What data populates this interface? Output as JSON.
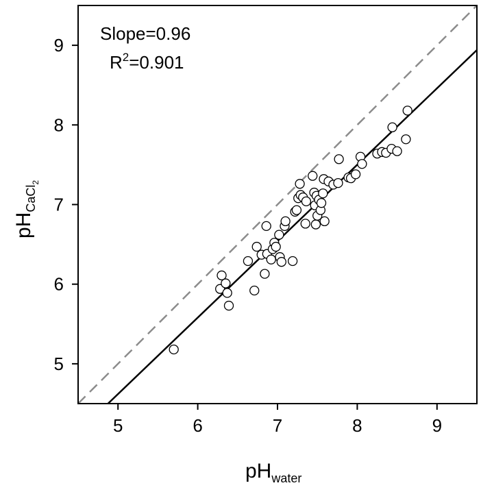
{
  "chart_data": {
    "type": "scatter",
    "xlabel": {
      "main": "pH",
      "sub": "water"
    },
    "ylabel": {
      "main": "pH",
      "sub": "CaCl",
      "sub2": "2"
    },
    "xlim": [
      4.5,
      9.5
    ],
    "ylim": [
      4.5,
      9.5
    ],
    "xticks": [
      5,
      6,
      7,
      8,
      9
    ],
    "yticks": [
      5,
      6,
      7,
      8,
      9
    ],
    "annotation": {
      "slope_text": "Slope=0.96",
      "r2_prefix": "R",
      "r2_sup": "2",
      "r2_value": "=0.901"
    },
    "one_to_one_line": {
      "style": "dashed",
      "color": "#8c8c8c",
      "points": [
        [
          4.5,
          4.5
        ],
        [
          9.5,
          9.5
        ]
      ]
    },
    "fit_line": {
      "style": "solid",
      "color": "#000000",
      "slope": 0.96,
      "intercept": -0.18
    },
    "series": [
      {
        "marker": "open-circle",
        "points": [
          [
            5.7,
            5.18
          ],
          [
            6.28,
            5.94
          ],
          [
            6.3,
            6.11
          ],
          [
            6.35,
            6.01
          ],
          [
            6.37,
            5.89
          ],
          [
            6.39,
            5.73
          ],
          [
            6.63,
            6.29
          ],
          [
            6.71,
            5.92
          ],
          [
            6.74,
            6.47
          ],
          [
            6.8,
            6.37
          ],
          [
            6.84,
            6.13
          ],
          [
            6.86,
            6.73
          ],
          [
            6.87,
            6.38
          ],
          [
            6.92,
            6.31
          ],
          [
            6.94,
            6.44
          ],
          [
            6.96,
            6.52
          ],
          [
            6.98,
            6.47
          ],
          [
            7.02,
            6.62
          ],
          [
            7.03,
            6.34
          ],
          [
            7.05,
            6.28
          ],
          [
            7.09,
            6.73
          ],
          [
            7.1,
            6.79
          ],
          [
            7.19,
            6.29
          ],
          [
            7.22,
            6.91
          ],
          [
            7.24,
            6.93
          ],
          [
            7.26,
            7.08
          ],
          [
            7.28,
            7.26
          ],
          [
            7.29,
            7.12
          ],
          [
            7.32,
            7.09
          ],
          [
            7.35,
            6.76
          ],
          [
            7.36,
            7.04
          ],
          [
            7.44,
            7.36
          ],
          [
            7.46,
            7.15
          ],
          [
            7.47,
            6.99
          ],
          [
            7.48,
            6.75
          ],
          [
            7.49,
            7.11
          ],
          [
            7.5,
            6.86
          ],
          [
            7.52,
            7.06
          ],
          [
            7.54,
            6.93
          ],
          [
            7.55,
            7.02
          ],
          [
            7.57,
            7.14
          ],
          [
            7.58,
            7.32
          ],
          [
            7.59,
            6.79
          ],
          [
            7.64,
            7.29
          ],
          [
            7.7,
            7.25
          ],
          [
            7.76,
            7.27
          ],
          [
            7.77,
            7.57
          ],
          [
            7.89,
            7.34
          ],
          [
            7.92,
            7.33
          ],
          [
            7.98,
            7.38
          ],
          [
            8.04,
            7.6
          ],
          [
            8.06,
            7.51
          ],
          [
            8.25,
            7.64
          ],
          [
            8.31,
            7.66
          ],
          [
            8.36,
            7.65
          ],
          [
            8.43,
            7.7
          ],
          [
            8.44,
            7.97
          ],
          [
            8.5,
            7.67
          ],
          [
            8.61,
            7.82
          ],
          [
            8.63,
            8.18
          ]
        ]
      }
    ]
  }
}
